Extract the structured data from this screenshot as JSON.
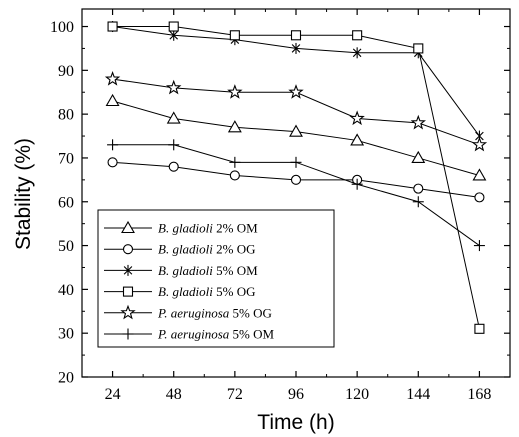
{
  "chart_data": {
    "type": "line",
    "xlabel": "Time (h)",
    "ylabel": "Stability (%)",
    "x": [
      24,
      48,
      72,
      96,
      120,
      144,
      168
    ],
    "xlim": [
      12,
      180
    ],
    "ylim": [
      20,
      104
    ],
    "yticks": [
      20,
      30,
      40,
      50,
      60,
      70,
      80,
      90,
      100
    ],
    "grid": false,
    "legend_position": "lower-left",
    "series": [
      {
        "name": "B. gladioli 2% OM",
        "species": "B. gladioli",
        "treatment": "2% OM",
        "marker": "triangle",
        "values": [
          83,
          79,
          77,
          76,
          74,
          70,
          66
        ]
      },
      {
        "name": "B. gladioli 2% OG",
        "species": "B. gladioli",
        "treatment": "2% OG",
        "marker": "circle",
        "values": [
          69,
          68,
          66,
          65,
          65,
          63,
          61
        ]
      },
      {
        "name": "B. gladioli 5% OM",
        "species": "B. gladioli",
        "treatment": "5% OM",
        "marker": "asterisk",
        "values": [
          100,
          98,
          97,
          95,
          94,
          94,
          75
        ]
      },
      {
        "name": "B. gladioli 5% OG",
        "species": "B. gladioli",
        "treatment": "5% OG",
        "marker": "square",
        "values": [
          100,
          100,
          98,
          98,
          98,
          95,
          31
        ]
      },
      {
        "name": "P. aeruginosa 5% OG",
        "species": "P. aeruginosa",
        "treatment": "5% OG",
        "marker": "star",
        "values": [
          88,
          86,
          85,
          85,
          79,
          78,
          73
        ]
      },
      {
        "name": "P. aeruginosa 5% OM",
        "species": "P. aeruginosa",
        "treatment": "5% OM",
        "marker": "plus",
        "values": [
          73,
          73,
          69,
          69,
          64,
          60,
          50
        ]
      }
    ]
  }
}
